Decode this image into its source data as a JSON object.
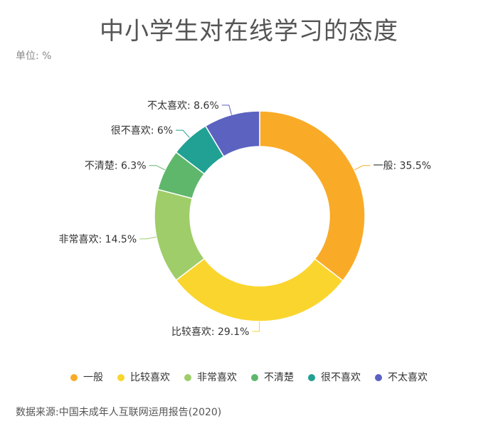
{
  "page": {
    "title": "中小学生对在线学习的态度",
    "unit": "单位: %",
    "source": "数据来源:中国未成年人互联网运用报告(2020)"
  },
  "chart_data": {
    "type": "pie",
    "title": "中小学生对在线学习的态度",
    "unit": "%",
    "legend_position": "bottom",
    "slices": [
      {
        "name": "一般",
        "value": 35.5,
        "color": "#f9ab27",
        "label": "一般: 35.5%"
      },
      {
        "name": "比较喜欢",
        "value": 29.1,
        "color": "#fad52e",
        "label": "比较喜欢: 29.1%"
      },
      {
        "name": "非常喜欢",
        "value": 14.5,
        "color": "#9fcd69",
        "label": "非常喜欢: 14.5%"
      },
      {
        "name": "不清楚",
        "value": 6.3,
        "color": "#5fb76c",
        "label": "不清楚: 6.3%"
      },
      {
        "name": "很不喜欢",
        "value": 6,
        "color": "#21a193",
        "label": "很不喜欢: 6%"
      },
      {
        "name": "不太喜欢",
        "value": 8.6,
        "color": "#5b62c0",
        "label": "不太喜欢: 8.6%"
      }
    ]
  }
}
